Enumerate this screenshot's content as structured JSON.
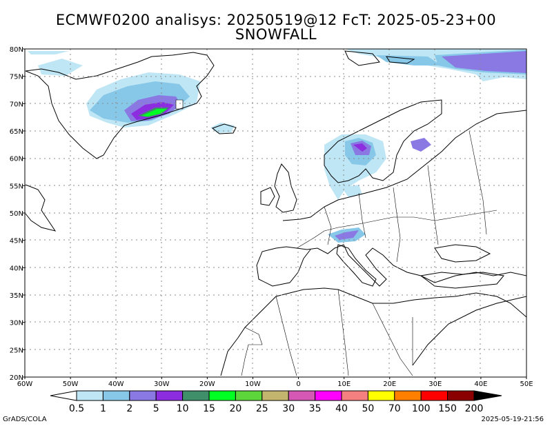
{
  "title_line1": "ECMWF0200 analisys: 20250519@12 FcT: 2025-05-23+00",
  "title_line2": "SNOWFALL",
  "lat_labels": [
    "80N",
    "75N",
    "70N",
    "65N",
    "60N",
    "55N",
    "50N",
    "45N",
    "40N",
    "35N",
    "30N",
    "25N",
    "20N"
  ],
  "lon_labels": [
    "60W",
    "50W",
    "40W",
    "30W",
    "20W",
    "10W",
    "0",
    "10E",
    "20E",
    "30E",
    "40E",
    "50E"
  ],
  "map_extent": {
    "lon": [
      -60,
      50
    ],
    "lat": [
      20,
      80
    ]
  },
  "colorbar": {
    "labels": [
      "0.5",
      "1",
      "2",
      "5",
      "10",
      "15",
      "20",
      "25",
      "30",
      "35",
      "40",
      "50",
      "70",
      "100",
      "150",
      "200"
    ],
    "colors": [
      "#bfe6f5",
      "#87c8e9",
      "#8a78e3",
      "#8c2ee0",
      "#3f8f6b",
      "#00ff22",
      "#5cd63a",
      "#c3b46e",
      "#d558b5",
      "#ff00ff",
      "#f58080",
      "#ffff00",
      "#ff8000",
      "#ff0000",
      "#8a0000"
    ],
    "under_color": "#ffffff",
    "over_color": "#000000"
  },
  "footer_left": "GrADS/COLA",
  "footer_right": "2025-05-19-21:56"
}
